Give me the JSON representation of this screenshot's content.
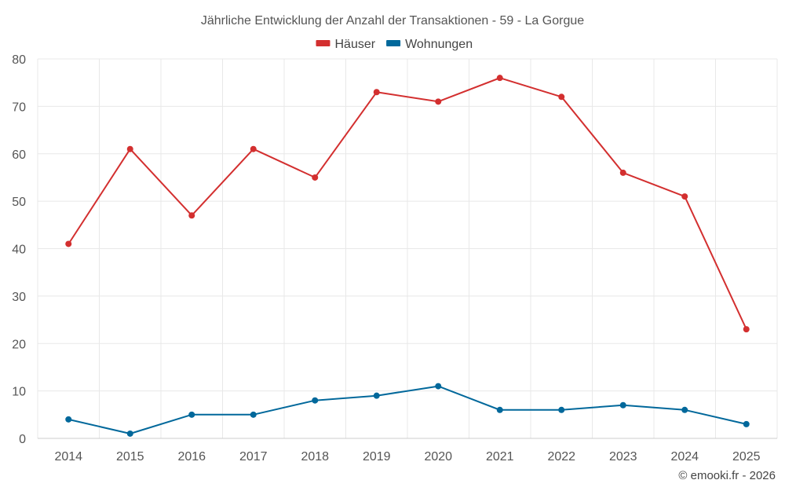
{
  "chart_data": {
    "type": "line",
    "title": "Jährliche Entwicklung der Anzahl der Transaktionen - 59 - La Gorgue",
    "categories": [
      "2014",
      "2015",
      "2016",
      "2017",
      "2018",
      "2019",
      "2020",
      "2021",
      "2022",
      "2023",
      "2024",
      "2025"
    ],
    "series": [
      {
        "name": "Häuser",
        "color": "#d32f2f",
        "values": [
          41,
          61,
          47,
          61,
          55,
          73,
          71,
          76,
          72,
          56,
          51,
          23
        ]
      },
      {
        "name": "Wohnungen",
        "color": "#01689b",
        "values": [
          4,
          1,
          5,
          5,
          8,
          9,
          11,
          6,
          6,
          7,
          6,
          3
        ]
      }
    ],
    "ylim": [
      0,
      80
    ],
    "yticks": [
      0,
      10,
      20,
      30,
      40,
      50,
      60,
      70,
      80
    ],
    "xlabel": "",
    "ylabel": "",
    "grid": true,
    "legend_position": "top-center"
  },
  "credit": "© emooki.fr - 2026"
}
